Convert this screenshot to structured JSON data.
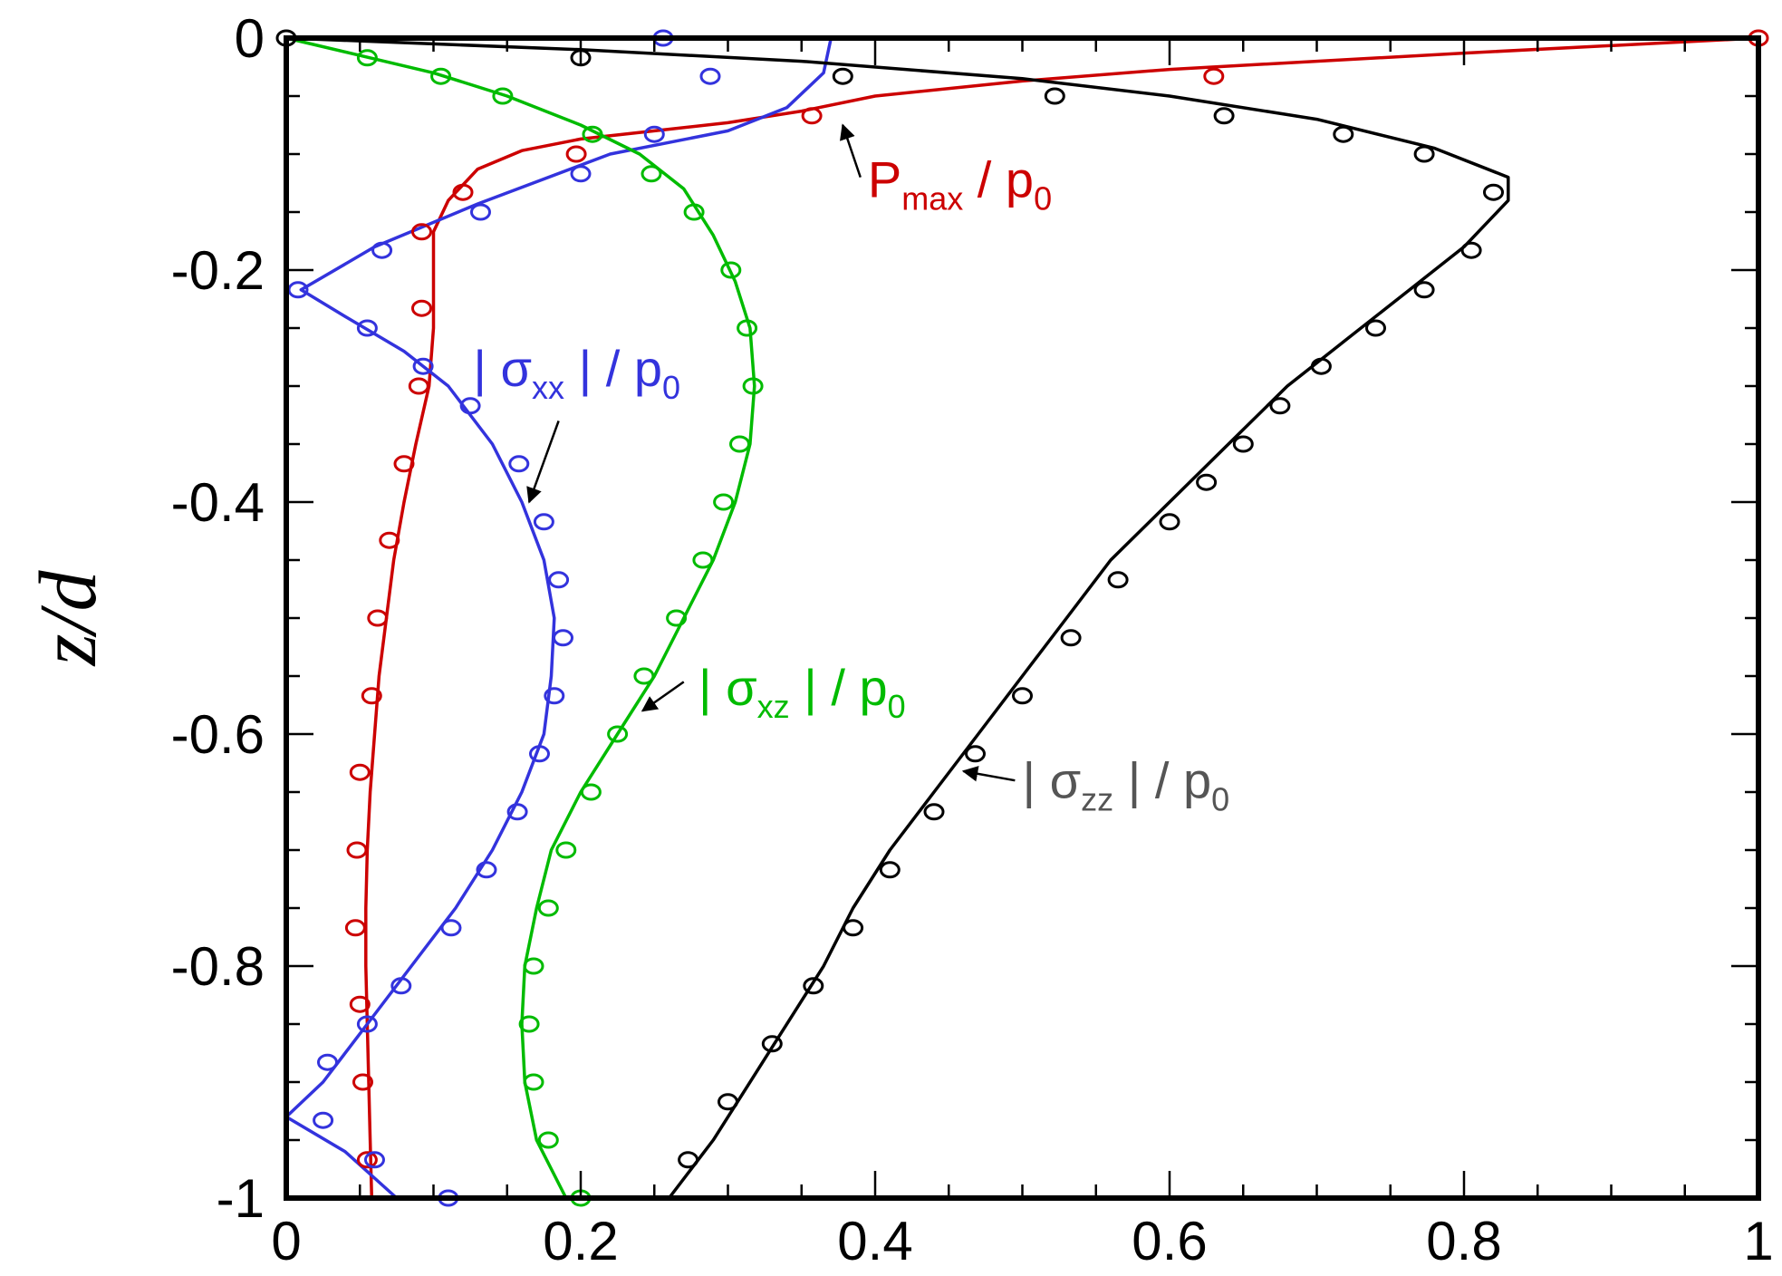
{
  "chart_data": {
    "type": "line",
    "xlabel": "",
    "ylabel": "z/d",
    "xlim": [
      0,
      1
    ],
    "ylim": [
      -1,
      0
    ],
    "x_ticks": [
      "0",
      "0.2",
      "0.4",
      "0.6",
      "0.8",
      "1"
    ],
    "y_ticks": [
      "0",
      "-0.2",
      "-0.4",
      "-0.6",
      "-0.8",
      "-1"
    ],
    "grid": false,
    "legend": "none",
    "series": [
      {
        "key": "pmax",
        "color": "#cc0000",
        "line": [
          [
            1.0,
            0.0
          ],
          [
            0.8,
            -0.013
          ],
          [
            0.6,
            -0.027
          ],
          [
            0.5,
            -0.037
          ],
          [
            0.4,
            -0.05
          ],
          [
            0.35,
            -0.063
          ],
          [
            0.3,
            -0.073
          ],
          [
            0.25,
            -0.08
          ],
          [
            0.2,
            -0.087
          ],
          [
            0.16,
            -0.097
          ],
          [
            0.13,
            -0.113
          ],
          [
            0.11,
            -0.14
          ],
          [
            0.1,
            -0.167
          ],
          [
            0.1,
            -0.2
          ],
          [
            0.1,
            -0.25
          ],
          [
            0.097,
            -0.3
          ],
          [
            0.088,
            -0.35
          ],
          [
            0.08,
            -0.4
          ],
          [
            0.073,
            -0.45
          ],
          [
            0.068,
            -0.5
          ],
          [
            0.063,
            -0.55
          ],
          [
            0.06,
            -0.6
          ],
          [
            0.057,
            -0.65
          ],
          [
            0.055,
            -0.7
          ],
          [
            0.054,
            -0.75
          ],
          [
            0.054,
            -0.8
          ],
          [
            0.055,
            -0.85
          ],
          [
            0.056,
            -0.9
          ],
          [
            0.057,
            -0.95
          ],
          [
            0.058,
            -1.0
          ]
        ],
        "points": [
          [
            1.0,
            0.0
          ],
          [
            0.63,
            -0.033
          ],
          [
            0.357,
            -0.067
          ],
          [
            0.197,
            -0.1
          ],
          [
            0.12,
            -0.133
          ],
          [
            0.092,
            -0.167
          ],
          [
            0.092,
            -0.233
          ],
          [
            0.09,
            -0.3
          ],
          [
            0.08,
            -0.367
          ],
          [
            0.07,
            -0.433
          ],
          [
            0.062,
            -0.5
          ],
          [
            0.058,
            -0.567
          ],
          [
            0.05,
            -0.633
          ],
          [
            0.048,
            -0.7
          ],
          [
            0.047,
            -0.767
          ],
          [
            0.05,
            -0.833
          ],
          [
            0.052,
            -0.9
          ],
          [
            0.055,
            -0.967
          ]
        ]
      },
      {
        "key": "sxx",
        "color": "#3333dd",
        "line": [
          [
            0.37,
            0.0
          ],
          [
            0.365,
            -0.03
          ],
          [
            0.34,
            -0.06
          ],
          [
            0.3,
            -0.08
          ],
          [
            0.22,
            -0.1
          ],
          [
            0.13,
            -0.143
          ],
          [
            0.06,
            -0.18
          ],
          [
            0.01,
            -0.217
          ],
          [
            0.04,
            -0.24
          ],
          [
            0.08,
            -0.27
          ],
          [
            0.11,
            -0.3
          ],
          [
            0.14,
            -0.35
          ],
          [
            0.16,
            -0.4
          ],
          [
            0.175,
            -0.45
          ],
          [
            0.182,
            -0.5
          ],
          [
            0.18,
            -0.55
          ],
          [
            0.175,
            -0.6
          ],
          [
            0.16,
            -0.65
          ],
          [
            0.14,
            -0.7
          ],
          [
            0.115,
            -0.75
          ],
          [
            0.085,
            -0.8
          ],
          [
            0.055,
            -0.85
          ],
          [
            0.025,
            -0.9
          ],
          [
            0.0,
            -0.93
          ],
          [
            0.04,
            -0.96
          ],
          [
            0.075,
            -1.0
          ]
        ],
        "points": [
          [
            0.256,
            0.0
          ],
          [
            0.288,
            -0.033
          ],
          [
            0.25,
            -0.083
          ],
          [
            0.2,
            -0.117
          ],
          [
            0.132,
            -0.15
          ],
          [
            0.065,
            -0.183
          ],
          [
            0.008,
            -0.217
          ],
          [
            0.055,
            -0.25
          ],
          [
            0.093,
            -0.283
          ],
          [
            0.125,
            -0.317
          ],
          [
            0.158,
            -0.367
          ],
          [
            0.175,
            -0.417
          ],
          [
            0.185,
            -0.467
          ],
          [
            0.188,
            -0.517
          ],
          [
            0.182,
            -0.567
          ],
          [
            0.172,
            -0.617
          ],
          [
            0.157,
            -0.667
          ],
          [
            0.136,
            -0.717
          ],
          [
            0.112,
            -0.767
          ],
          [
            0.078,
            -0.817
          ],
          [
            0.055,
            -0.85
          ],
          [
            0.028,
            -0.883
          ],
          [
            0.025,
            -0.933
          ],
          [
            0.06,
            -0.967
          ],
          [
            0.11,
            -1.0
          ]
        ]
      },
      {
        "key": "sxz",
        "color": "#00bb00",
        "line": [
          [
            0.0,
            0.0
          ],
          [
            0.05,
            -0.015
          ],
          [
            0.1,
            -0.03
          ],
          [
            0.15,
            -0.05
          ],
          [
            0.2,
            -0.075
          ],
          [
            0.24,
            -0.1
          ],
          [
            0.27,
            -0.13
          ],
          [
            0.29,
            -0.17
          ],
          [
            0.305,
            -0.21
          ],
          [
            0.315,
            -0.25
          ],
          [
            0.318,
            -0.3
          ],
          [
            0.315,
            -0.35
          ],
          [
            0.305,
            -0.4
          ],
          [
            0.29,
            -0.45
          ],
          [
            0.27,
            -0.5
          ],
          [
            0.25,
            -0.55
          ],
          [
            0.225,
            -0.6
          ],
          [
            0.2,
            -0.65
          ],
          [
            0.18,
            -0.7
          ],
          [
            0.17,
            -0.75
          ],
          [
            0.162,
            -0.8
          ],
          [
            0.16,
            -0.85
          ],
          [
            0.162,
            -0.9
          ],
          [
            0.17,
            -0.95
          ],
          [
            0.19,
            -1.0
          ]
        ],
        "points": [
          [
            0.055,
            -0.017
          ],
          [
            0.105,
            -0.033
          ],
          [
            0.147,
            -0.05
          ],
          [
            0.208,
            -0.083
          ],
          [
            0.248,
            -0.117
          ],
          [
            0.277,
            -0.15
          ],
          [
            0.302,
            -0.2
          ],
          [
            0.313,
            -0.25
          ],
          [
            0.317,
            -0.3
          ],
          [
            0.308,
            -0.35
          ],
          [
            0.297,
            -0.4
          ],
          [
            0.283,
            -0.45
          ],
          [
            0.265,
            -0.5
          ],
          [
            0.243,
            -0.55
          ],
          [
            0.225,
            -0.6
          ],
          [
            0.207,
            -0.65
          ],
          [
            0.19,
            -0.7
          ],
          [
            0.178,
            -0.75
          ],
          [
            0.168,
            -0.8
          ],
          [
            0.165,
            -0.85
          ],
          [
            0.168,
            -0.9
          ],
          [
            0.178,
            -0.95
          ],
          [
            0.2,
            -1.0
          ]
        ]
      },
      {
        "key": "szz",
        "color": "#000000",
        "line": [
          [
            0.0,
            0.0
          ],
          [
            0.2,
            -0.01
          ],
          [
            0.35,
            -0.02
          ],
          [
            0.5,
            -0.035
          ],
          [
            0.6,
            -0.05
          ],
          [
            0.7,
            -0.07
          ],
          [
            0.78,
            -0.095
          ],
          [
            0.83,
            -0.12
          ],
          [
            0.83,
            -0.14
          ],
          [
            0.8,
            -0.18
          ],
          [
            0.76,
            -0.22
          ],
          [
            0.72,
            -0.26
          ],
          [
            0.68,
            -0.3
          ],
          [
            0.64,
            -0.35
          ],
          [
            0.6,
            -0.4
          ],
          [
            0.56,
            -0.45
          ],
          [
            0.53,
            -0.5
          ],
          [
            0.5,
            -0.55
          ],
          [
            0.47,
            -0.6
          ],
          [
            0.44,
            -0.65
          ],
          [
            0.41,
            -0.7
          ],
          [
            0.385,
            -0.75
          ],
          [
            0.365,
            -0.8
          ],
          [
            0.34,
            -0.85
          ],
          [
            0.315,
            -0.9
          ],
          [
            0.29,
            -0.95
          ],
          [
            0.26,
            -1.0
          ]
        ],
        "points": [
          [
            0.0,
            0.0
          ],
          [
            0.2,
            -0.017
          ],
          [
            0.378,
            -0.033
          ],
          [
            0.522,
            -0.05
          ],
          [
            0.637,
            -0.067
          ],
          [
            0.718,
            -0.083
          ],
          [
            0.773,
            -0.1
          ],
          [
            0.82,
            -0.133
          ],
          [
            0.805,
            -0.183
          ],
          [
            0.773,
            -0.217
          ],
          [
            0.74,
            -0.25
          ],
          [
            0.703,
            -0.283
          ],
          [
            0.675,
            -0.317
          ],
          [
            0.65,
            -0.35
          ],
          [
            0.625,
            -0.383
          ],
          [
            0.6,
            -0.417
          ],
          [
            0.565,
            -0.467
          ],
          [
            0.533,
            -0.517
          ],
          [
            0.5,
            -0.567
          ],
          [
            0.468,
            -0.617
          ],
          [
            0.44,
            -0.667
          ],
          [
            0.41,
            -0.717
          ],
          [
            0.385,
            -0.767
          ],
          [
            0.358,
            -0.817
          ],
          [
            0.33,
            -0.867
          ],
          [
            0.3,
            -0.917
          ],
          [
            0.273,
            -0.967
          ]
        ]
      }
    ],
    "annotations": [
      {
        "key": "pmax",
        "color": "#cc0000",
        "main": "P",
        "sub": "max",
        "bar": false,
        "rest": " / p",
        "tail": "0",
        "text_at": [
          0.395,
          -0.137
        ],
        "arrow_from": [
          0.39,
          -0.12
        ],
        "arrow_to": [
          0.378,
          -0.075
        ]
      },
      {
        "key": "sxx",
        "color": "#3333dd",
        "main": "σ",
        "sub": "xx",
        "bar": true,
        "rest": " / p",
        "tail": "0",
        "text_at": [
          0.127,
          -0.3
        ],
        "arrow_from": [
          0.185,
          -0.33
        ],
        "arrow_to": [
          0.165,
          -0.4
        ]
      },
      {
        "key": "sxz",
        "color": "#00bb00",
        "main": "σ",
        "sub": "xz",
        "bar": true,
        "rest": " / p",
        "tail": "0",
        "text_at": [
          0.28,
          -0.575
        ],
        "arrow_from": [
          0.27,
          -0.555
        ],
        "arrow_to": [
          0.242,
          -0.58
        ]
      },
      {
        "key": "szz",
        "color": "#555555",
        "main": "σ",
        "sub": "zz",
        "bar": true,
        "rest": " / p",
        "tail": "0",
        "text_at": [
          0.5,
          -0.655
        ],
        "arrow_from": [
          0.495,
          -0.64
        ],
        "arrow_to": [
          0.46,
          -0.632
        ]
      }
    ]
  }
}
